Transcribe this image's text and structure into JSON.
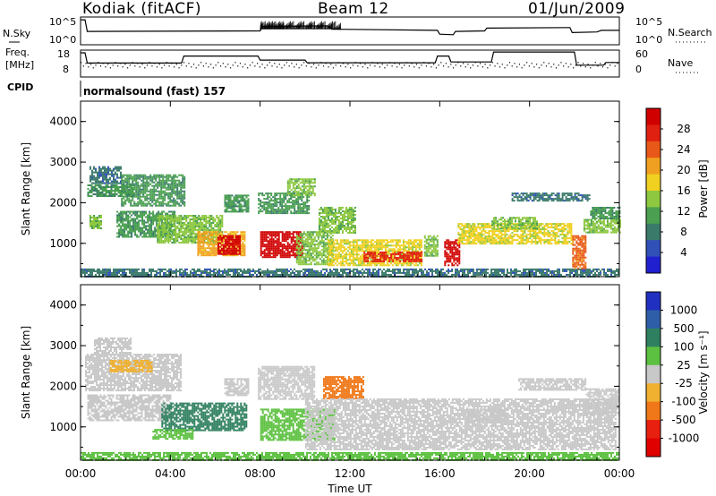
{
  "header": {
    "station": "Kodiak (fitACF)",
    "beam": "Beam 12",
    "date": "01/Jun/2009"
  },
  "summary": {
    "nsky_label": "N.Sky",
    "nsearch_label": "N.Search",
    "freq_label_1": "Freq.",
    "freq_label_2": "[MHz]",
    "nave_label": "Nave",
    "cpid_label": "CPID",
    "nsky_ticks": [
      "10^5",
      "10^0"
    ],
    "nsearch_ticks": [
      "10^5",
      "10^0"
    ],
    "freq_ticks": [
      "18",
      "8"
    ],
    "nave_ticks": [
      "60",
      "0"
    ],
    "cpid_text": "normalsound (fast) 157"
  },
  "chart_data": [
    {
      "type": "line",
      "panel": "noise",
      "xlim": [
        0,
        24
      ],
      "ylim_log10": [
        0,
        5
      ],
      "series": [
        {
          "name": "N.Sky",
          "x": [
            0,
            0.2,
            0.3,
            8,
            8.1,
            11,
            11.2,
            15.9,
            16,
            16.6,
            16.7,
            18,
            18.1,
            21.8,
            21.9,
            23,
            23.2,
            24
          ],
          "y_log10": [
            4.5,
            4.5,
            2.4,
            2.5,
            3.3,
            3.4,
            2.8,
            2.6,
            1.9,
            1.8,
            2.4,
            2.5,
            3.0,
            3.1,
            2.2,
            2.3,
            2.6,
            2.6
          ]
        },
        {
          "name": "N.Search",
          "x": [
            0,
            24
          ],
          "y_log10": [
            2.5,
            2.5
          ]
        }
      ]
    },
    {
      "type": "line",
      "panel": "frequency",
      "xlim": [
        0,
        24
      ],
      "ylim": [
        8,
        18
      ],
      "ylabel": "Freq. [MHz]",
      "series": [
        {
          "name": "Freq.",
          "x": [
            0,
            0.2,
            0.3,
            4.5,
            4.6,
            7.9,
            8.0,
            10.0,
            10.1,
            15.8,
            15.9,
            16.4,
            16.5,
            18.3,
            18.4,
            22.0,
            22.1,
            23.3,
            23.4,
            24
          ],
          "y": [
            17,
            17,
            13.2,
            13.2,
            15.8,
            15.8,
            14.3,
            14.3,
            13.3,
            13.3,
            15.8,
            15.8,
            13.6,
            13.6,
            17.3,
            17.3,
            12.4,
            12.4,
            13.4,
            13.4
          ]
        },
        {
          "name": "Nave",
          "x": [
            0,
            24
          ],
          "y": [
            12.6,
            12.6
          ]
        }
      ]
    },
    {
      "type": "heatmap",
      "panel": "power",
      "xlabel": "Time UT",
      "ylabel": "Slant Range [km]",
      "xlim": [
        0,
        24
      ],
      "ylim": [
        180,
        4500
      ],
      "x_ticks": [
        "00:00",
        "04:00",
        "08:00",
        "12:00",
        "16:00",
        "20:00",
        "00:00"
      ],
      "y_ticks": [
        "1000",
        "2000",
        "3000",
        "4000"
      ],
      "colorbar_label": "Power [dB]",
      "colorbar_ticks": [
        "4",
        "8",
        "12",
        "16",
        "20",
        "24",
        "28"
      ],
      "colorbar_range": [
        0,
        30
      ],
      "colors": [
        "#2020d0",
        "#3050b8",
        "#3a7a6a",
        "#4aa050",
        "#8dc840",
        "#f0d020",
        "#f0a020",
        "#e85818",
        "#e02010",
        "#d00000"
      ],
      "regions": [
        {
          "t": [
            0.0,
            24.0
          ],
          "r": [
            200,
            380
          ],
          "v": 6
        },
        {
          "t": [
            0.3,
            2.3
          ],
          "r": [
            2150,
            2450
          ],
          "v": 10
        },
        {
          "t": [
            0.4,
            1.8
          ],
          "r": [
            2500,
            2900
          ],
          "v": 7
        },
        {
          "t": [
            1.8,
            4.6
          ],
          "r": [
            1950,
            2700
          ],
          "v": 11
        },
        {
          "t": [
            0.4,
            0.9
          ],
          "r": [
            1350,
            1700
          ],
          "v": 14
        },
        {
          "t": [
            1.6,
            4.2
          ],
          "r": [
            1150,
            1800
          ],
          "v": 11
        },
        {
          "t": [
            3.4,
            6.3
          ],
          "r": [
            1000,
            1700
          ],
          "v": 14
        },
        {
          "t": [
            5.2,
            7.3
          ],
          "r": [
            700,
            1300
          ],
          "v": 19
        },
        {
          "t": [
            6.1,
            7.1
          ],
          "r": [
            750,
            1200
          ],
          "v": 28
        },
        {
          "t": [
            6.4,
            7.5
          ],
          "r": [
            1800,
            2200
          ],
          "v": 9
        },
        {
          "t": [
            7.9,
            10.2
          ],
          "r": [
            1750,
            2250
          ],
          "v": 10
        },
        {
          "t": [
            9.2,
            10.4
          ],
          "r": [
            2200,
            2600
          ],
          "v": 12
        },
        {
          "t": [
            8.0,
            9.9
          ],
          "r": [
            650,
            1300
          ],
          "v": 30
        },
        {
          "t": [
            9.6,
            11.2
          ],
          "r": [
            500,
            1300
          ],
          "v": 14
        },
        {
          "t": [
            10.6,
            12.2
          ],
          "r": [
            1250,
            1900
          ],
          "v": 13
        },
        {
          "t": [
            11.0,
            15.2
          ],
          "r": [
            450,
            1100
          ],
          "v": 17
        },
        {
          "t": [
            12.6,
            15.2
          ],
          "r": [
            550,
            800
          ],
          "v": 24
        },
        {
          "t": [
            15.3,
            15.9
          ],
          "r": [
            700,
            1200
          ],
          "v": 13
        },
        {
          "t": [
            16.2,
            16.9
          ],
          "r": [
            450,
            1100
          ],
          "v": 27
        },
        {
          "t": [
            16.8,
            21.9
          ],
          "r": [
            1000,
            1500
          ],
          "v": 16
        },
        {
          "t": [
            18.3,
            20.3
          ],
          "r": [
            1350,
            1650
          ],
          "v": 13
        },
        {
          "t": [
            19.2,
            22.7
          ],
          "r": [
            2050,
            2250
          ],
          "v": 7
        },
        {
          "t": [
            21.9,
            22.5
          ],
          "r": [
            400,
            1200
          ],
          "v": 21
        },
        {
          "t": [
            22.4,
            24.0
          ],
          "r": [
            1250,
            1600
          ],
          "v": 12
        },
        {
          "t": [
            22.7,
            24.0
          ],
          "r": [
            1600,
            1900
          ],
          "v": 9
        }
      ]
    },
    {
      "type": "heatmap",
      "panel": "velocity",
      "xlabel": "Time UT",
      "ylabel": "Slant Range [km]",
      "xlim": [
        0,
        24
      ],
      "ylim": [
        180,
        4500
      ],
      "x_ticks": [
        "00:00",
        "04:00",
        "08:00",
        "12:00",
        "16:00",
        "20:00",
        "00:00"
      ],
      "y_ticks": [
        "1000",
        "2000",
        "3000",
        "4000"
      ],
      "colorbar_label": "Velocity [m s^-1]",
      "colorbar_ticks": [
        "1000",
        "500",
        "100",
        "25",
        "-25",
        "-100",
        "-500",
        "-1000"
      ],
      "colors": [
        "#2030c0",
        "#2f5ea8",
        "#2f8060",
        "#5cc040",
        "#c8c8c8",
        "#f0b030",
        "#f07818",
        "#e82010",
        "#e00000"
      ],
      "regions": [
        {
          "t": [
            0.0,
            24.0
          ],
          "r": [
            200,
            380
          ],
          "cat": 3
        },
        {
          "t": [
            0.2,
            4.5
          ],
          "r": [
            1900,
            2800
          ],
          "cat": 4
        },
        {
          "t": [
            0.6,
            2.2
          ],
          "r": [
            2800,
            3200
          ],
          "cat": 4
        },
        {
          "t": [
            1.3,
            3.2
          ],
          "r": [
            2350,
            2650
          ],
          "cat": 5
        },
        {
          "t": [
            0.3,
            4.0
          ],
          "r": [
            1150,
            1800
          ],
          "cat": 4
        },
        {
          "t": [
            3.6,
            7.4
          ],
          "r": [
            900,
            1600
          ],
          "cat": 2
        },
        {
          "t": [
            3.2,
            5.0
          ],
          "r": [
            700,
            950
          ],
          "cat": 3
        },
        {
          "t": [
            6.4,
            7.5
          ],
          "r": [
            1800,
            2200
          ],
          "cat": 4
        },
        {
          "t": [
            7.9,
            10.4
          ],
          "r": [
            1700,
            2500
          ],
          "cat": 4
        },
        {
          "t": [
            8.0,
            11.3
          ],
          "r": [
            700,
            1450
          ],
          "cat": 3
        },
        {
          "t": [
            10.8,
            12.6
          ],
          "r": [
            1700,
            2250
          ],
          "cat": 6
        },
        {
          "t": [
            10.0,
            23.8
          ],
          "r": [
            450,
            1700
          ],
          "cat": 4
        },
        {
          "t": [
            17.2,
            19.0
          ],
          "r": [
            1100,
            1450
          ],
          "cat": 4
        },
        {
          "t": [
            19.5,
            22.5
          ],
          "r": [
            1900,
            2200
          ],
          "cat": 4
        },
        {
          "t": [
            22.5,
            24.0
          ],
          "r": [
            1300,
            1950
          ],
          "cat": 4
        }
      ]
    }
  ]
}
